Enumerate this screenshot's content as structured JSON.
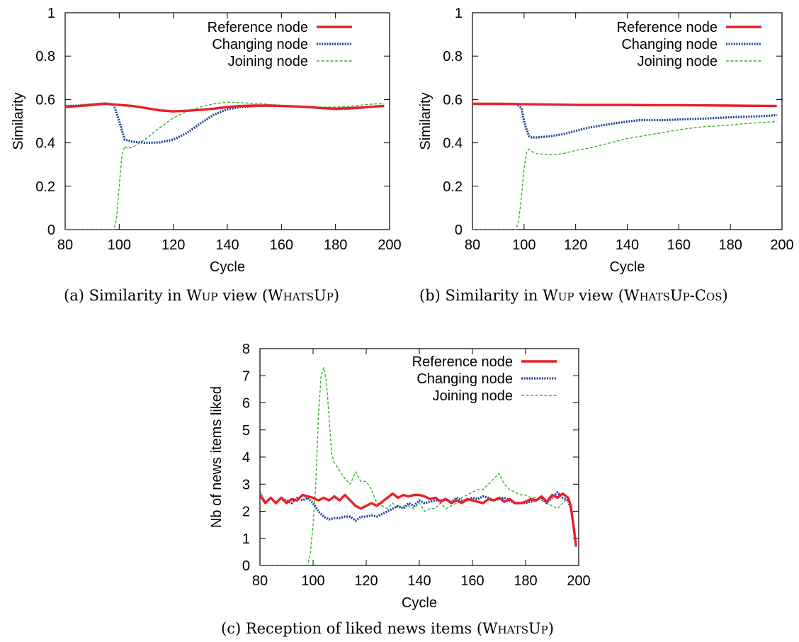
{
  "charts": [
    {
      "caption": {
        "prefix": "(a) Similarity in ",
        "sc1": "Wup",
        "mid": " view (",
        "sc2": "WhatsUp",
        "suffix": ")"
      },
      "xlabel": "Cycle",
      "ylabel": "Similarity"
    },
    {
      "caption": {
        "prefix": "(b) Similarity in ",
        "sc1": "Wup",
        "mid": " view (",
        "sc2": "WhatsUp-Cos",
        "suffix": ")"
      },
      "xlabel": "Cycle",
      "ylabel": "Similarity"
    },
    {
      "caption": {
        "prefix": "(c) Reception of liked news items (",
        "sc1": "",
        "mid": "",
        "sc2": "WhatsUp",
        "suffix": ")"
      },
      "xlabel": "Cycle",
      "ylabel": "Nb of news items liked"
    }
  ],
  "colors": {
    "reference": "#e8202a",
    "changing": "#1f3f9a",
    "joining": "#3cb030"
  },
  "chart_data": [
    {
      "type": "line",
      "xlabel": "Cycle",
      "ylabel": "Similarity",
      "xlim": [
        80,
        200
      ],
      "ylim": [
        0,
        1
      ],
      "xticks": [
        "80",
        "100",
        "120",
        "140",
        "160",
        "180",
        "200"
      ],
      "yticks": [
        "0",
        "0.2",
        "0.4",
        "0.6",
        "0.8",
        "1"
      ],
      "legend_position": "top-right",
      "series": [
        {
          "name": "Reference node",
          "x": [
            80,
            85,
            90,
            95,
            100,
            105,
            110,
            115,
            120,
            125,
            130,
            135,
            140,
            145,
            150,
            155,
            160,
            165,
            170,
            175,
            180,
            185,
            190,
            195,
            198
          ],
          "values": [
            0.565,
            0.57,
            0.575,
            0.58,
            0.575,
            0.57,
            0.56,
            0.55,
            0.545,
            0.548,
            0.552,
            0.558,
            0.565,
            0.57,
            0.572,
            0.572,
            0.57,
            0.568,
            0.565,
            0.56,
            0.558,
            0.56,
            0.563,
            0.568,
            0.57
          ]
        },
        {
          "name": "Changing node",
          "x": [
            80,
            85,
            90,
            95,
            98,
            100,
            102,
            105,
            110,
            115,
            120,
            125,
            130,
            135,
            140,
            145,
            150,
            155,
            160,
            165,
            170,
            175,
            180,
            185,
            190,
            195,
            198
          ],
          "values": [
            0.57,
            0.572,
            0.578,
            0.582,
            0.575,
            0.5,
            0.415,
            0.405,
            0.4,
            0.402,
            0.415,
            0.445,
            0.49,
            0.53,
            0.555,
            0.565,
            0.57,
            0.572,
            0.57,
            0.568,
            0.565,
            0.56,
            0.555,
            0.558,
            0.562,
            0.568,
            0.57
          ]
        },
        {
          "name": "Joining node",
          "x": [
            80,
            90,
            97,
            98,
            99,
            100,
            101,
            102,
            103,
            105,
            110,
            115,
            120,
            125,
            130,
            135,
            140,
            145,
            150,
            155,
            160,
            165,
            170,
            175,
            180,
            185,
            190,
            195,
            198
          ],
          "values": [
            0,
            0,
            0,
            0,
            0.05,
            0.2,
            0.34,
            0.385,
            0.375,
            0.38,
            0.42,
            0.47,
            0.515,
            0.545,
            0.565,
            0.58,
            0.588,
            0.585,
            0.582,
            0.578,
            0.573,
            0.57,
            0.566,
            0.565,
            0.565,
            0.568,
            0.575,
            0.58,
            0.58
          ]
        }
      ]
    },
    {
      "type": "line",
      "xlabel": "Cycle",
      "ylabel": "Similarity",
      "xlim": [
        80,
        200
      ],
      "ylim": [
        0,
        1
      ],
      "xticks": [
        "80",
        "100",
        "120",
        "140",
        "160",
        "180",
        "200"
      ],
      "yticks": [
        "0",
        "0.2",
        "0.4",
        "0.6",
        "0.8",
        "1"
      ],
      "legend_position": "top-right",
      "series": [
        {
          "name": "Reference node",
          "x": [
            80,
            90,
            100,
            110,
            120,
            130,
            140,
            150,
            160,
            170,
            180,
            190,
            198
          ],
          "values": [
            0.58,
            0.58,
            0.578,
            0.577,
            0.575,
            0.575,
            0.575,
            0.574,
            0.574,
            0.573,
            0.572,
            0.571,
            0.57
          ]
        },
        {
          "name": "Changing node",
          "x": [
            80,
            90,
            97,
            99,
            100,
            101,
            102,
            103,
            105,
            110,
            115,
            120,
            125,
            130,
            135,
            140,
            145,
            150,
            155,
            160,
            165,
            170,
            175,
            180,
            185,
            190,
            195,
            198
          ],
          "values": [
            0.58,
            0.58,
            0.58,
            0.56,
            0.5,
            0.46,
            0.43,
            0.425,
            0.425,
            0.43,
            0.44,
            0.455,
            0.47,
            0.48,
            0.49,
            0.498,
            0.505,
            0.505,
            0.505,
            0.508,
            0.51,
            0.512,
            0.515,
            0.518,
            0.52,
            0.522,
            0.525,
            0.528
          ]
        },
        {
          "name": "Joining node",
          "x": [
            80,
            90,
            97,
            98,
            99,
            100,
            101,
            102,
            103,
            105,
            110,
            115,
            120,
            125,
            130,
            135,
            140,
            145,
            150,
            155,
            160,
            165,
            170,
            175,
            180,
            185,
            190,
            195,
            198
          ],
          "values": [
            0,
            0,
            0,
            0.05,
            0.15,
            0.28,
            0.36,
            0.37,
            0.36,
            0.35,
            0.345,
            0.35,
            0.365,
            0.375,
            0.39,
            0.405,
            0.42,
            0.43,
            0.44,
            0.45,
            0.46,
            0.468,
            0.475,
            0.478,
            0.482,
            0.488,
            0.492,
            0.496,
            0.498
          ]
        }
      ]
    },
    {
      "type": "line",
      "xlabel": "Cycle",
      "ylabel": "Nb of news items liked",
      "xlim": [
        80,
        200
      ],
      "ylim": [
        0,
        8
      ],
      "xticks": [
        "80",
        "100",
        "120",
        "140",
        "160",
        "180",
        "200"
      ],
      "yticks": [
        "0",
        "1",
        "2",
        "3",
        "4",
        "5",
        "6",
        "7",
        "8"
      ],
      "legend_position": "top-right",
      "series": [
        {
          "name": "Reference node",
          "x": [
            80,
            82,
            84,
            86,
            88,
            90,
            92,
            94,
            96,
            98,
            100,
            102,
            104,
            106,
            108,
            110,
            112,
            114,
            116,
            118,
            120,
            122,
            124,
            126,
            128,
            130,
            132,
            134,
            136,
            138,
            140,
            142,
            144,
            146,
            148,
            150,
            152,
            154,
            156,
            158,
            160,
            162,
            164,
            166,
            168,
            170,
            172,
            174,
            176,
            178,
            180,
            182,
            184,
            186,
            188,
            190,
            192,
            194,
            196,
            197,
            198,
            199
          ],
          "values": [
            2.6,
            2.3,
            2.5,
            2.3,
            2.5,
            2.3,
            2.45,
            2.4,
            2.6,
            2.55,
            2.5,
            2.4,
            2.5,
            2.4,
            2.55,
            2.4,
            2.6,
            2.4,
            2.2,
            2.1,
            2.2,
            2.3,
            2.2,
            2.35,
            2.5,
            2.65,
            2.5,
            2.6,
            2.55,
            2.6,
            2.6,
            2.55,
            2.45,
            2.5,
            2.35,
            2.45,
            2.3,
            2.4,
            2.3,
            2.45,
            2.4,
            2.35,
            2.3,
            2.45,
            2.4,
            2.5,
            2.35,
            2.45,
            2.3,
            2.3,
            2.35,
            2.45,
            2.4,
            2.55,
            2.35,
            2.6,
            2.5,
            2.65,
            2.5,
            2.2,
            1.5,
            0.7
          ]
        },
        {
          "name": "Changing node",
          "x": [
            80,
            82,
            84,
            86,
            88,
            90,
            92,
            94,
            96,
            98,
            100,
            102,
            104,
            106,
            108,
            110,
            112,
            114,
            116,
            118,
            120,
            122,
            124,
            126,
            128,
            130,
            132,
            134,
            136,
            138,
            140,
            142,
            144,
            146,
            148,
            150,
            152,
            154,
            156,
            158,
            160,
            162,
            164,
            166,
            168,
            170,
            172,
            174,
            176,
            178,
            180,
            182,
            184,
            186,
            188,
            190,
            192,
            194,
            196,
            197,
            198,
            199
          ],
          "values": [
            2.7,
            2.3,
            2.5,
            2.3,
            2.5,
            2.4,
            2.3,
            2.5,
            2.4,
            2.5,
            2.3,
            2.0,
            1.8,
            1.7,
            1.75,
            1.75,
            1.8,
            1.8,
            1.65,
            1.8,
            1.8,
            1.85,
            1.8,
            1.9,
            2.0,
            2.1,
            2.2,
            2.1,
            2.3,
            2.2,
            2.4,
            2.3,
            2.35,
            2.4,
            2.4,
            2.45,
            2.35,
            2.5,
            2.4,
            2.4,
            2.5,
            2.45,
            2.55,
            2.5,
            2.4,
            2.45,
            2.5,
            2.4,
            2.3,
            2.3,
            2.3,
            2.35,
            2.4,
            2.5,
            2.3,
            2.5,
            2.7,
            2.5,
            2.4,
            2.1,
            1.5,
            0.7
          ]
        },
        {
          "name": "Joining node",
          "x": [
            80,
            90,
            98,
            99,
            100,
            101,
            102,
            103,
            104,
            105,
            106,
            107,
            108,
            110,
            112,
            114,
            116,
            118,
            120,
            122,
            124,
            126,
            128,
            130,
            132,
            134,
            136,
            138,
            140,
            142,
            144,
            146,
            148,
            150,
            152,
            154,
            156,
            158,
            160,
            162,
            164,
            166,
            168,
            170,
            172,
            174,
            176,
            178,
            180,
            182,
            184,
            186,
            188,
            190,
            192,
            194,
            196,
            197,
            198,
            199
          ],
          "values": [
            0,
            0,
            0,
            0.5,
            1.5,
            3.0,
            5.5,
            7.0,
            7.3,
            6.8,
            5.5,
            4.1,
            3.8,
            3.5,
            3.2,
            3.0,
            3.45,
            3.1,
            3.1,
            2.8,
            2.3,
            2.2,
            2.1,
            2.3,
            2.1,
            2.2,
            2.2,
            2.1,
            2.3,
            2.0,
            2.1,
            2.1,
            2.3,
            2.1,
            2.2,
            2.3,
            2.5,
            2.6,
            2.7,
            2.8,
            2.8,
            3.0,
            3.2,
            3.4,
            3.0,
            2.8,
            2.7,
            2.6,
            2.6,
            2.5,
            2.5,
            2.4,
            2.3,
            2.2,
            2.1,
            2.3,
            2.5,
            2.2,
            1.5,
            0.8
          ]
        }
      ]
    }
  ]
}
